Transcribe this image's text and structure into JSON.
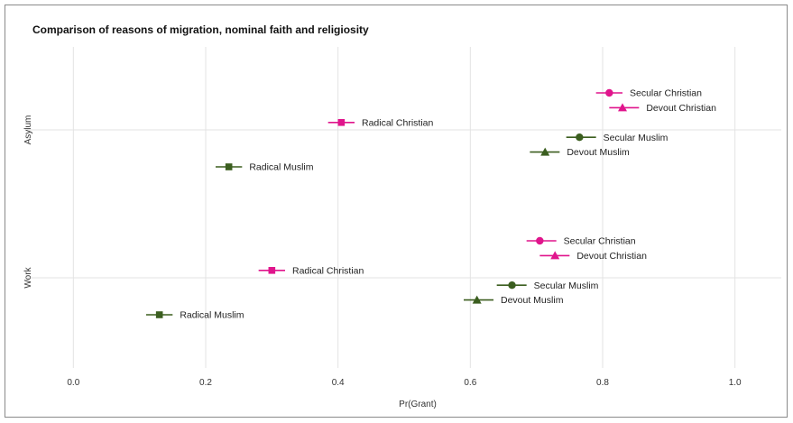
{
  "chart_data": {
    "type": "scatter",
    "title": "Comparison of reasons of migration, nominal faith and religiosity",
    "xlabel": "Pr(Grant)",
    "ylabel": "",
    "xlim": [
      -0.07,
      1.07
    ],
    "xticks": [
      "0.0",
      "0.2",
      "0.4",
      "0.6",
      "0.8",
      "1.0"
    ],
    "xtick_values": [
      0,
      0.2,
      0.4,
      0.6,
      0.8,
      1.0
    ],
    "categories": [
      "Asylum",
      "Work"
    ],
    "grid": true,
    "legend": "none",
    "colors": {
      "christian": "#e0158c",
      "muslim": "#3b5e1f"
    },
    "points": [
      {
        "category": "Asylum",
        "label": "Secular Christian",
        "x": 0.81,
        "lo": 0.79,
        "hi": 0.83,
        "offset": 0.25,
        "shape": "circle",
        "group": "christian"
      },
      {
        "category": "Asylum",
        "label": "Devout Christian",
        "x": 0.83,
        "lo": 0.81,
        "hi": 0.855,
        "offset": 0.15,
        "shape": "triangle",
        "group": "christian"
      },
      {
        "category": "Asylum",
        "label": "Radical Christian",
        "x": 0.405,
        "lo": 0.385,
        "hi": 0.425,
        "offset": 0.05,
        "shape": "square",
        "group": "christian"
      },
      {
        "category": "Asylum",
        "label": "Secular Muslim",
        "x": 0.765,
        "lo": 0.745,
        "hi": 0.79,
        "offset": -0.05,
        "shape": "circle",
        "group": "muslim"
      },
      {
        "category": "Asylum",
        "label": "Devout Muslim",
        "x": 0.713,
        "lo": 0.69,
        "hi": 0.735,
        "offset": -0.15,
        "shape": "triangle",
        "group": "muslim"
      },
      {
        "category": "Asylum",
        "label": "Radical Muslim",
        "x": 0.235,
        "lo": 0.215,
        "hi": 0.255,
        "offset": -0.25,
        "shape": "square",
        "group": "muslim"
      },
      {
        "category": "Work",
        "label": "Secular Christian",
        "x": 0.705,
        "lo": 0.685,
        "hi": 0.73,
        "offset": 0.25,
        "shape": "circle",
        "group": "christian"
      },
      {
        "category": "Work",
        "label": "Devout Christian",
        "x": 0.728,
        "lo": 0.705,
        "hi": 0.75,
        "offset": 0.15,
        "shape": "triangle",
        "group": "christian"
      },
      {
        "category": "Work",
        "label": "Radical Christian",
        "x": 0.3,
        "lo": 0.28,
        "hi": 0.32,
        "offset": 0.05,
        "shape": "square",
        "group": "christian"
      },
      {
        "category": "Work",
        "label": "Secular Muslim",
        "x": 0.663,
        "lo": 0.64,
        "hi": 0.685,
        "offset": -0.05,
        "shape": "circle",
        "group": "muslim"
      },
      {
        "category": "Work",
        "label": "Devout Muslim",
        "x": 0.61,
        "lo": 0.59,
        "hi": 0.635,
        "offset": -0.15,
        "shape": "triangle",
        "group": "muslim"
      },
      {
        "category": "Work",
        "label": "Radical Muslim",
        "x": 0.13,
        "lo": 0.11,
        "hi": 0.15,
        "offset": -0.25,
        "shape": "square",
        "group": "muslim"
      }
    ]
  }
}
